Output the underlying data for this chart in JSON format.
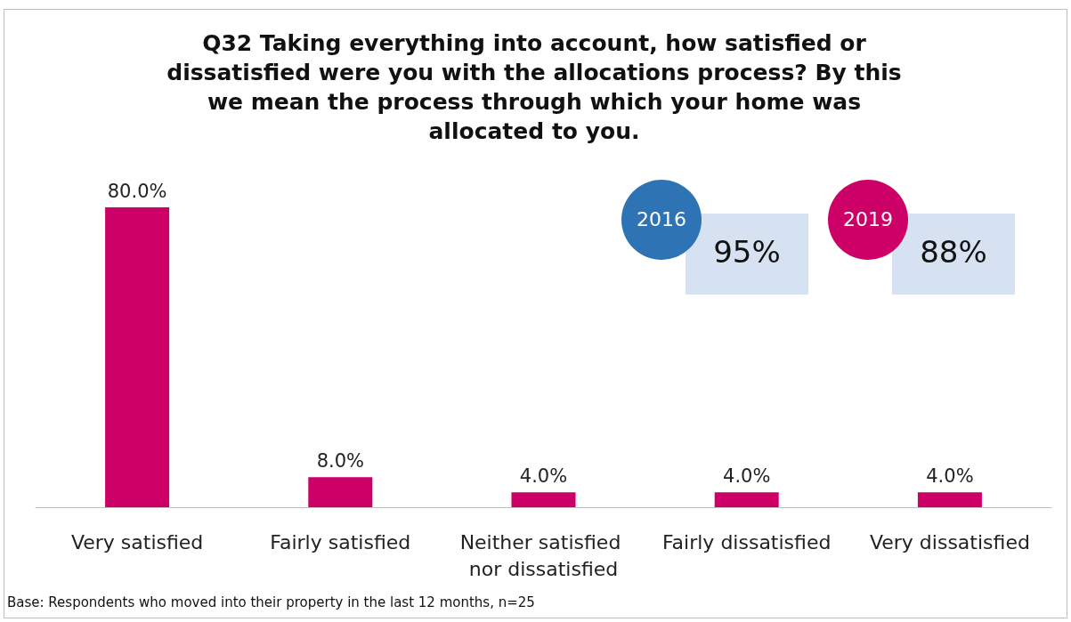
{
  "chart_data": {
    "type": "bar",
    "title": "Q32 Taking everything into account, how satisfied or dissatisfied were you with the allocations process? By this we mean the process through which your home was allocated to you.",
    "categories": [
      "Very satisfied",
      "Fairly satisfied",
      "Neither satisfied nor dissatisfied",
      "Fairly dissatisfied",
      "Very dissatisfied"
    ],
    "values": [
      80,
      8,
      4,
      4,
      4
    ],
    "value_labels": [
      "80.0%",
      "8.0%",
      "4.0%",
      "4.0%",
      "4.0%"
    ],
    "color": "#cc0066",
    "annotations": [
      "Base: Respondents who moved into their property in the last 12 months, n=25",
      "2016",
      "95%",
      "2019",
      "88%"
    ]
  }
}
